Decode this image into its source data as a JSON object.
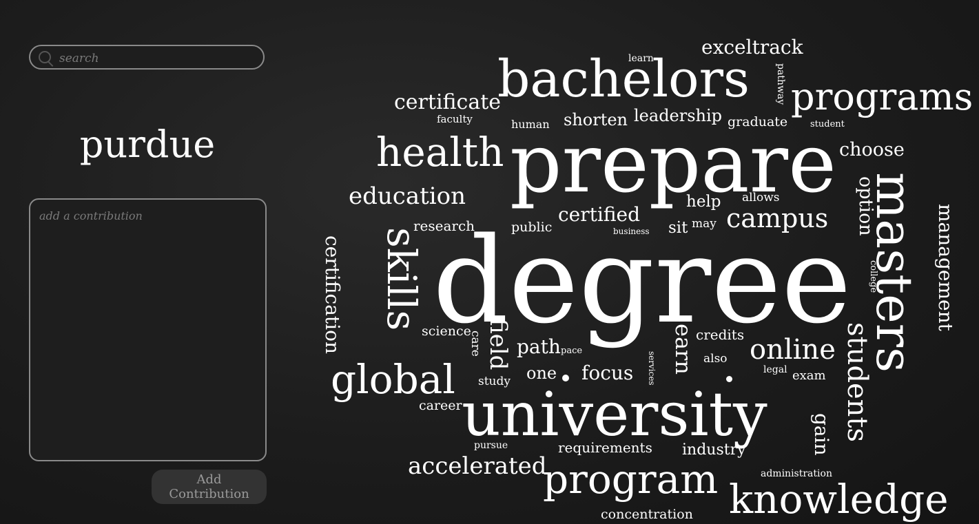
{
  "search": {
    "placeholder": "search"
  },
  "topic": {
    "title": "purdue"
  },
  "contribution": {
    "placeholder": "add a contribution",
    "button_label": "Add Contribution"
  },
  "word_cloud": {
    "words": {
      "degree": "degree",
      "prepare": "prepare",
      "university": "university",
      "bachelors": "bachelors",
      "programs": "programs",
      "masters": "masters",
      "program": "program",
      "knowledge": "knowledge",
      "health": "health",
      "skills": "skills",
      "global": "global",
      "online": "online",
      "students": "students",
      "campus": "campus",
      "education": "education",
      "certificate": "certificate",
      "exceltrack": "exceltrack",
      "accelerated": "accelerated",
      "management": "management",
      "certification": "certification",
      "option": "option",
      "choose": "choose",
      "earn": "earn",
      "certified": "certified",
      "shorten": "shorten",
      "leadership": "leadership",
      "focus": "focus",
      "path": "path",
      "field": "field",
      "gain": "gain",
      "one": "one",
      "industry": "industry",
      "requirements": "requirements",
      "concentration": "concentration",
      "credits": "credits",
      "help": "help",
      "graduate": "graduate",
      "research": "research",
      "public": "public",
      "sit": "sit",
      "may": "may",
      "science": "science",
      "career": "career",
      "study": "study",
      "exam": "exam",
      "also": "also",
      "allows": "allows",
      "human": "human",
      "faculty": "faculty",
      "learn": "learn",
      "pathway": "pathway",
      "student": "student",
      "business": "business",
      "care": "care",
      "pace": "pace",
      "services": "services",
      "legal": "legal",
      "pursue": "pursue",
      "administration": "administration",
      "college": "college"
    }
  }
}
